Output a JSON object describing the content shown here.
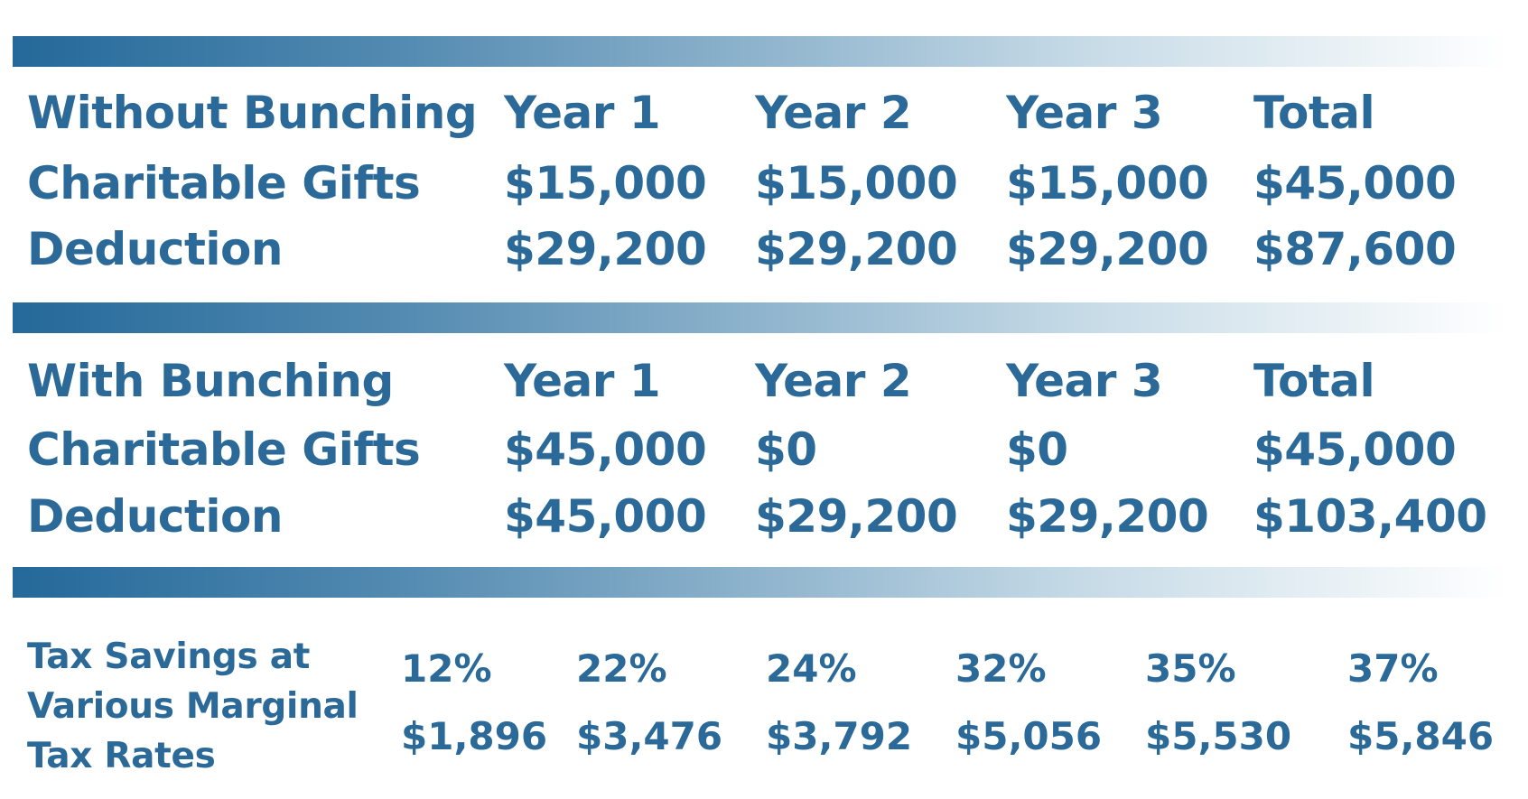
{
  "section_without": {
    "title": "Without Bunching",
    "headers": [
      "Year 1",
      "Year 2",
      "Year 3",
      "Total"
    ],
    "rows": [
      {
        "label": "Charitable Gifts",
        "values": [
          "$15,000",
          "$15,000",
          "$15,000",
          "$45,000"
        ]
      },
      {
        "label": "Deduction",
        "values": [
          "$29,200",
          "$29,200",
          "$29,200",
          "$87,600"
        ]
      }
    ]
  },
  "section_with": {
    "title": "With Bunching",
    "headers": [
      "Year 1",
      "Year 2",
      "Year 3",
      "Total"
    ],
    "rows": [
      {
        "label": "Charitable Gifts",
        "values": [
          "$45,000",
          "$0",
          "$0",
          "$45,000"
        ]
      },
      {
        "label": "Deduction",
        "values": [
          "$45,000",
          "$29,200",
          "$29,200",
          "$103,400"
        ]
      }
    ]
  },
  "tax_savings": {
    "label_lines": [
      "Tax Savings at",
      "Various Marginal",
      "Tax Rates"
    ],
    "rates": [
      "12%",
      "22%",
      "24%",
      "32%",
      "35%",
      "37%"
    ],
    "savings": [
      "$1,896",
      "$3,476",
      "$3,792",
      "$5,056",
      "$5,530",
      "$5,846"
    ]
  },
  "colors": {
    "text": "#2b6a98",
    "bar_start": "#24699a",
    "bar_end": "#ffffff"
  }
}
